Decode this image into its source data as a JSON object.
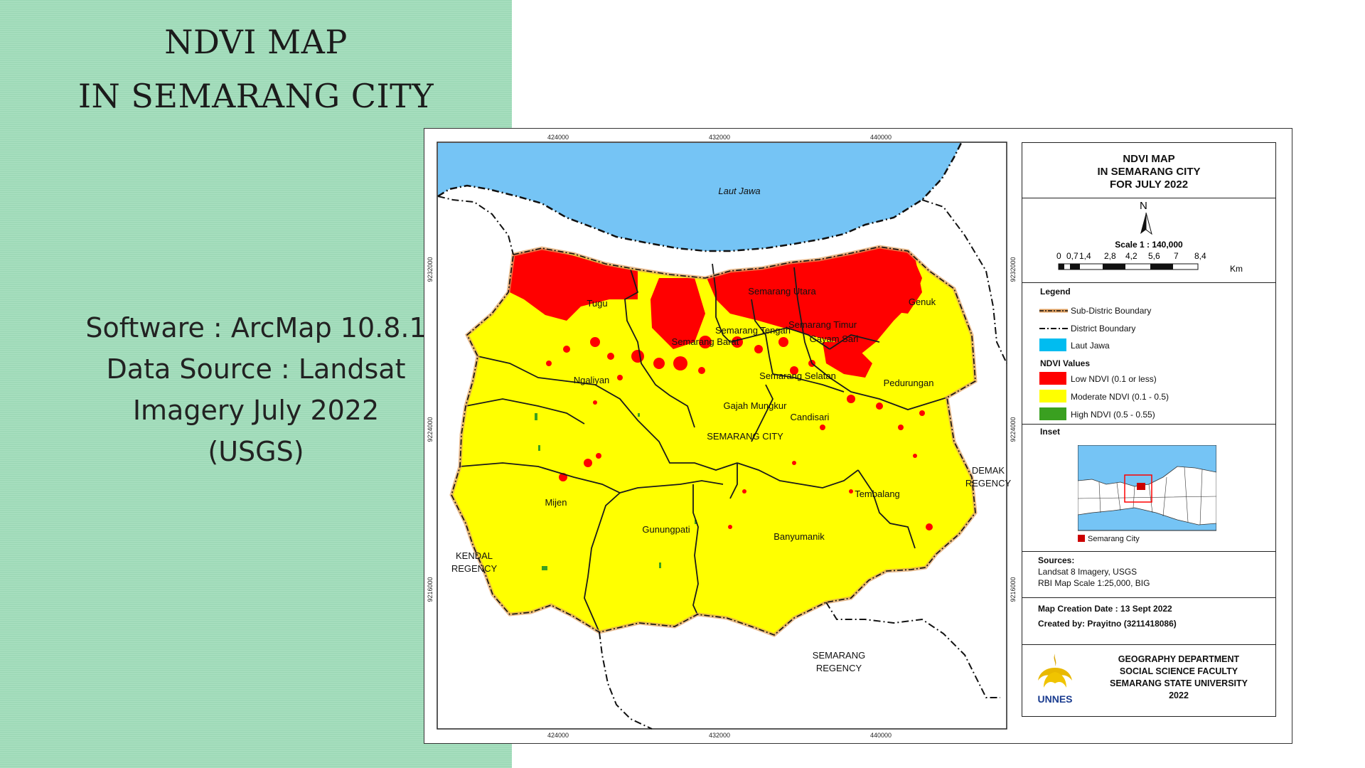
{
  "slide": {
    "title_line1": "NDVI  MAP",
    "title_line2": "IN SEMARANG CITY",
    "info_lines": [
      "Software : ArcMap 10.8.1",
      "Data Source : Landsat",
      "Imagery July 2022",
      "(USGS)"
    ]
  },
  "map": {
    "top_ticks": [
      "424000",
      "432000",
      "440000"
    ],
    "bottom_ticks": [
      "424000",
      "432000",
      "440000"
    ],
    "left_ticks": [
      "9232000",
      "9224000",
      "9216000"
    ],
    "right_ticks": [
      "9232000",
      "9224000",
      "9216000"
    ],
    "sea_label": "Laut Jawa",
    "districts": [
      "Tugu",
      "Semarang Utara",
      "Genuk",
      "Semarang Tengah",
      "Semarang Timur",
      "Semarang Barat",
      "Gayam Sari",
      "Ngaliyan",
      "Semarang Selatan",
      "Pedurungan",
      "Gajah Mungkur",
      "Candisari",
      "SEMARANG CITY",
      "Mijen",
      "Tembalang",
      "Gunungpati",
      "Banyumanik"
    ],
    "regencies": {
      "kendal_1": "KENDAL",
      "kendal_2": "REGENCY",
      "demak_1": "DEMAK",
      "demak_2": "REGENCY",
      "semarang_1": "SEMARANG",
      "semarang_2": "REGENCY"
    }
  },
  "panel": {
    "title_lines": [
      "NDVI MAP",
      "IN SEMARANG CITY",
      "FOR JULY 2022"
    ],
    "north": "N",
    "scale_label": "Scale 1 : 140,000",
    "scale_ticks": [
      "0",
      "0,7",
      "1,4",
      "2,8",
      "4,2",
      "5,6",
      "7",
      "8,4"
    ],
    "scale_unit": "Km",
    "legend_title": "Legend",
    "legend_items": [
      {
        "label": "Sub-Distric Boundary"
      },
      {
        "label": "District Boundary"
      },
      {
        "label": "Laut Jawa"
      }
    ],
    "ndvi_title": "NDVI Values",
    "ndvi_items": [
      {
        "label": "Low NDVI (0.1 or less)",
        "color": "#ff0000"
      },
      {
        "label": "Moderate NDVI (0.1 - 0.5)",
        "color": "#ffff00"
      },
      {
        "label": "High NDVI (0.5 - 0.55)",
        "color": "#3aa020"
      }
    ],
    "inset_title": "Inset",
    "inset_caption": "Semarang City",
    "sources_title": "Sources:",
    "sources": [
      "Landsat 8 Imagery, USGS",
      "RBI Map Scale 1:25,000, BIG"
    ],
    "creation_date": "Map Creation Date : 13 Sept 2022",
    "created_by": "Created by: Prayitno  (3211418086)",
    "logo_text": "UNNES",
    "institution": [
      "GEOGRAPHY DEPARTMENT",
      "SOCIAL SCIENCE FACULTY",
      "SEMARANG STATE UNIVERSITY",
      "2022"
    ]
  },
  "colors": {
    "background": "#9fdcb9",
    "sea": "#75c4f5",
    "low": "#ff0000",
    "moderate": "#ffff00",
    "high": "#3aa020"
  }
}
